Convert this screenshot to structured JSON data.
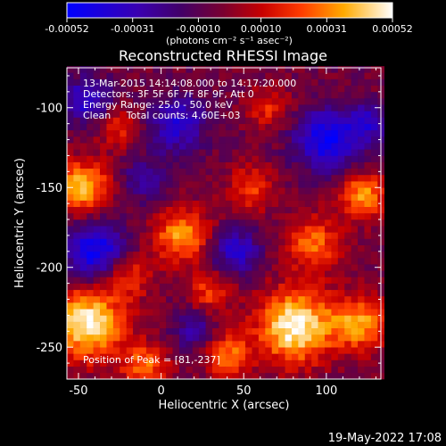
{
  "chart_data": {
    "type": "heatmap",
    "title": "Reconstructed RHESSI Image",
    "xlabel": "Heliocentric X (arcsec)",
    "ylabel": "Heliocentric Y (arcsec)",
    "xlim": [
      -57,
      133
    ],
    "ylim": [
      -270,
      -75
    ],
    "x_ticks": [
      -50,
      0,
      50,
      100
    ],
    "y_ticks": [
      -100,
      -150,
      -200,
      -250
    ],
    "colorbar": {
      "min": -0.00052,
      "max": 0.00052,
      "tick_values": [
        -0.00052,
        -0.00031,
        -0.0001,
        0.0001,
        0.00031,
        0.00052
      ],
      "tick_labels": [
        "-0.00052",
        "-0.00031",
        "-0.00010",
        "0.00010",
        "0.00031",
        "0.00052"
      ],
      "units": "(photons cm⁻² s⁻¹ asec⁻²)"
    },
    "annotations": [
      "13-Mar-2015 14:14:08.000 to 14:17:20.000",
      "Detectors: 3F 5F 6F 7F 8F 9F, Att 0",
      "Energy Range: 25.0 - 50.0 keV",
      "Clean     Total counts: 4.60E+03"
    ],
    "peak_label": "Position of Peak = [81,-237]",
    "peak": {
      "x": 81,
      "y": -237
    },
    "grid": false,
    "blobs": [
      {
        "x": 81,
        "y": -237,
        "amp": 0.00052,
        "s": 16
      },
      {
        "x": -45,
        "y": -235,
        "amp": 0.0005,
        "s": 16
      },
      {
        "x": -48,
        "y": -150,
        "amp": 0.00042,
        "s": 12
      },
      {
        "x": 12,
        "y": -180,
        "amp": 0.00036,
        "s": 12
      },
      {
        "x": 92,
        "y": -185,
        "amp": 0.0003,
        "s": 12
      },
      {
        "x": 120,
        "y": -235,
        "amp": 0.00036,
        "s": 12
      },
      {
        "x": 122,
        "y": -155,
        "amp": 0.00036,
        "s": 10
      },
      {
        "x": 40,
        "y": -255,
        "amp": 0.0003,
        "s": 10
      },
      {
        "x": -10,
        "y": -262,
        "amp": 0.0003,
        "s": 10
      },
      {
        "x": 55,
        "y": -150,
        "amp": 0.00024,
        "s": 10
      },
      {
        "x": -25,
        "y": -112,
        "amp": 0.0002,
        "s": 9
      },
      {
        "x": 65,
        "y": -100,
        "amp": 0.0002,
        "s": 9
      },
      {
        "x": -20,
        "y": -205,
        "amp": 0.00024,
        "s": 10
      },
      {
        "x": 30,
        "y": -215,
        "amp": 0.00024,
        "s": 9
      },
      {
        "x": 100,
        "y": -120,
        "amp": -0.0004,
        "s": 13
      },
      {
        "x": 10,
        "y": -110,
        "amp": -0.0003,
        "s": 12
      },
      {
        "x": -40,
        "y": -190,
        "amp": -0.0004,
        "s": 13
      },
      {
        "x": 45,
        "y": -190,
        "amp": -0.0003,
        "s": 10
      },
      {
        "x": -10,
        "y": -145,
        "amp": -0.0002,
        "s": 10
      },
      {
        "x": 20,
        "y": -240,
        "amp": -0.0002,
        "s": 9
      },
      {
        "x": 125,
        "y": -110,
        "amp": -0.00025,
        "s": 9
      },
      {
        "x": -45,
        "y": -95,
        "amp": -0.0003,
        "s": 10
      }
    ]
  },
  "footer": {
    "date": "19-May-2022 17:08"
  }
}
